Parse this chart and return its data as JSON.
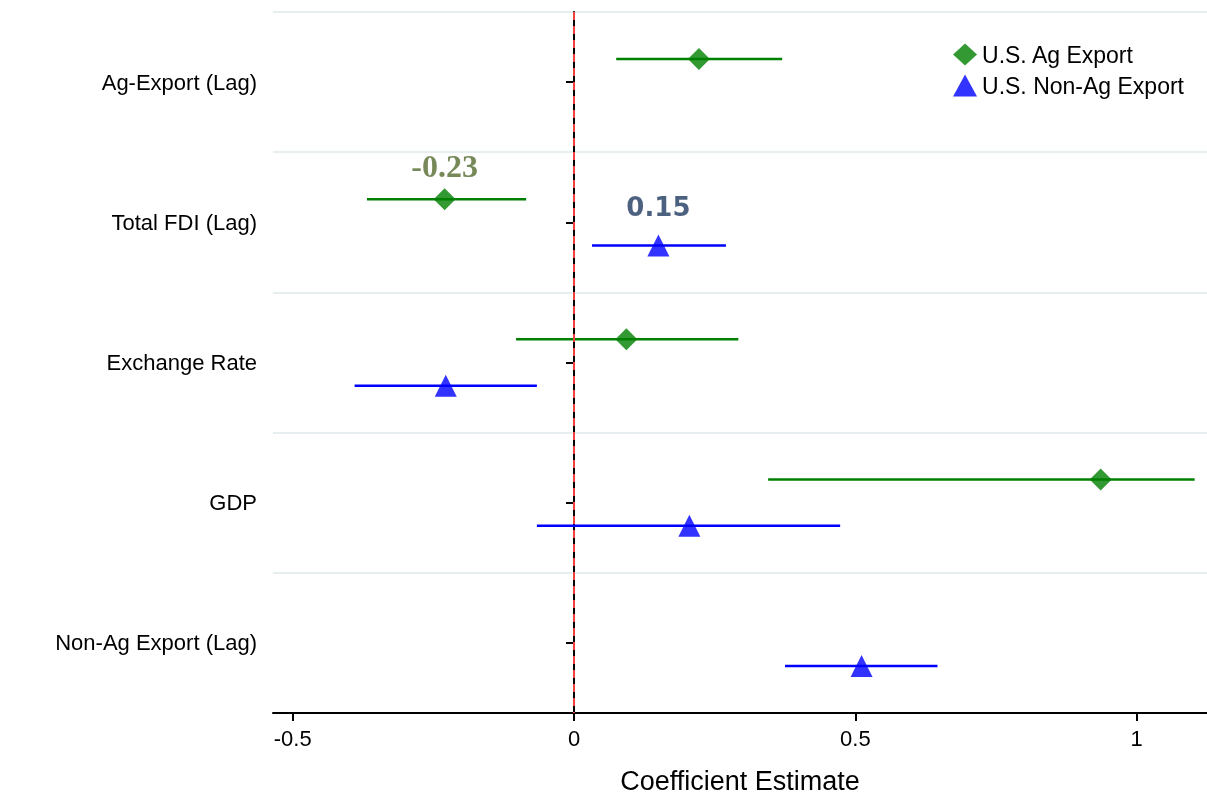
{
  "chart_data": {
    "type": "scatter",
    "orientation": "horizontal",
    "xlabel": "Coefficient Estimate",
    "categories": [
      "Ag-Export (Lag)",
      "Total FDI (Lag)",
      "Exchange Rate",
      "GDP",
      "Non-Ag Export (Lag)"
    ],
    "series": [
      {
        "name": "U.S. Ag Export",
        "color": "#008000",
        "marker": "diamond",
        "values": [
          0.222,
          -0.23,
          0.093,
          0.936,
          null
        ],
        "errors": [
          [
            0.075,
            0.37
          ],
          [
            -0.368,
            -0.085
          ],
          [
            -0.103,
            0.292
          ],
          [
            0.345,
            1.103
          ],
          null
        ],
        "value_labels": [
          null,
          "-0.23",
          null,
          null,
          null
        ]
      },
      {
        "name": "U.S. Non-Ag Export",
        "color": "#0000ff",
        "marker": "triangle",
        "values": [
          null,
          0.15,
          -0.228,
          0.205,
          0.511
        ],
        "errors": [
          null,
          [
            0.032,
            0.27
          ],
          [
            -0.39,
            -0.066
          ],
          [
            -0.066,
            0.473
          ],
          [
            0.375,
            0.646
          ]
        ],
        "value_labels": [
          null,
          "0.15",
          null,
          null,
          null
        ]
      }
    ],
    "xlim": [
      -0.535,
      1.125
    ],
    "xticks": [
      -0.5,
      0,
      0.5,
      1
    ],
    "ref_lines": [
      {
        "axis": "x",
        "value": 0,
        "color": "#f04040",
        "line_style": "dashed"
      }
    ],
    "grid": "y",
    "legend": "top right"
  }
}
